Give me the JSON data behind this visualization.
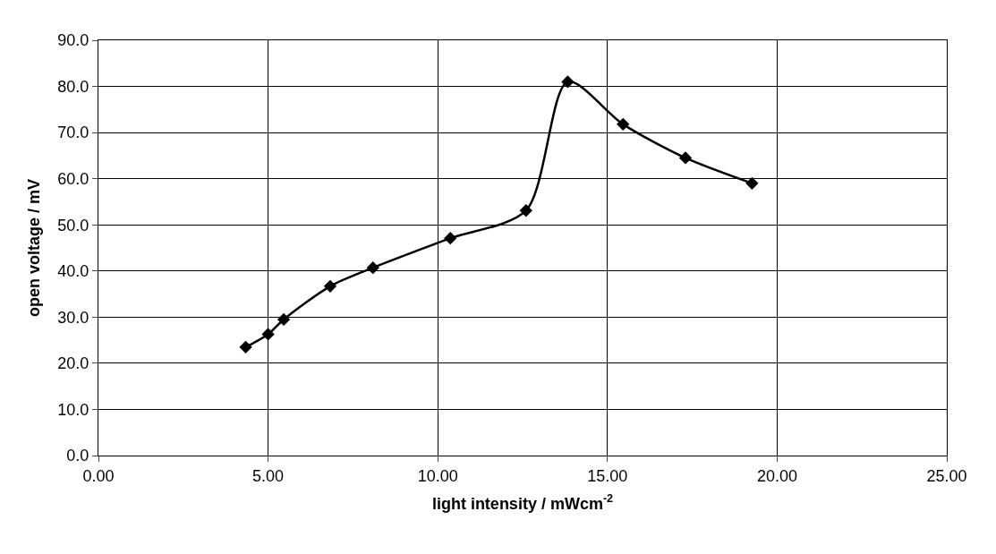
{
  "chart_data": {
    "type": "line",
    "xlabel": "light intensity / mWcm$^{-2}$",
    "ylabel": "open voltage / mV",
    "x": [
      4.34,
      5.0,
      5.46,
      6.83,
      8.09,
      10.37,
      12.6,
      13.83,
      15.46,
      17.3,
      19.26
    ],
    "series": [
      {
        "color": "#000000",
        "values": [
          23.5,
          26.3,
          29.5,
          36.7,
          40.7,
          47.1,
          53.1,
          81.0,
          71.8,
          64.5,
          59.0
        ]
      }
    ],
    "marker": "diamond",
    "line_style": "solid",
    "xlim": [
      0,
      25
    ],
    "xticks": [
      {
        "value": 0,
        "label": "0.00"
      },
      {
        "value": 5,
        "label": "5.00"
      },
      {
        "value": 10,
        "label": "10.00"
      },
      {
        "value": 15,
        "label": "15.00"
      },
      {
        "value": 20,
        "label": "20.00"
      },
      {
        "value": 25,
        "label": "25.00"
      }
    ],
    "ylim": [
      0,
      90
    ],
    "yticks": [
      {
        "value": 0,
        "label": "0.0"
      },
      {
        "value": 10,
        "label": "10.0"
      },
      {
        "value": 20,
        "label": "20.0"
      },
      {
        "value": 30,
        "label": "30.0"
      },
      {
        "value": 40,
        "label": "40.0"
      },
      {
        "value": 50,
        "label": "50.0"
      },
      {
        "value": 60,
        "label": "60.0"
      },
      {
        "value": 70,
        "label": "70.0"
      },
      {
        "value": 80,
        "label": "80.0"
      },
      {
        "value": 90,
        "label": "90.0"
      }
    ],
    "grid": true
  }
}
